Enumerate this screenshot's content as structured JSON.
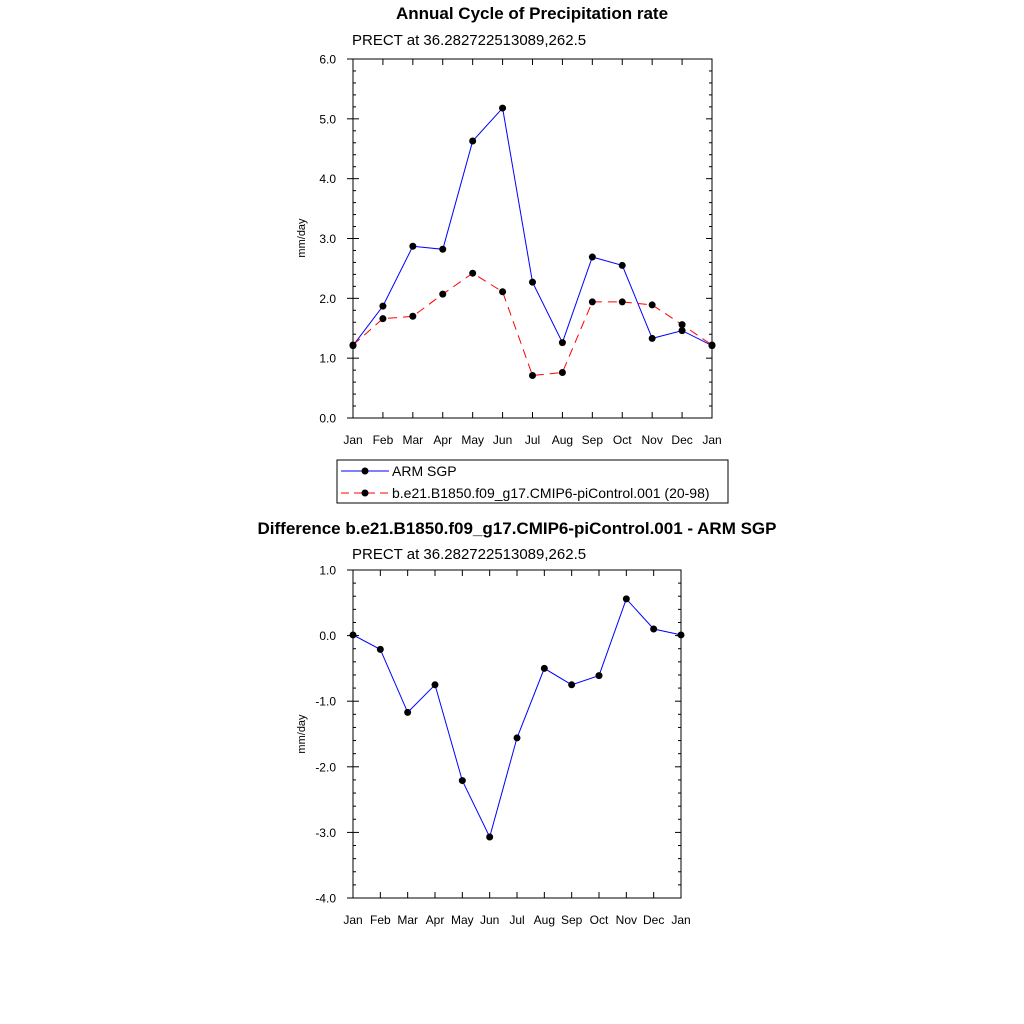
{
  "chart_data": [
    {
      "type": "line",
      "title": "Annual Cycle of Precipitation rate",
      "subtitle": "PRECT at 36.282722513089,262.5",
      "xlabel": "",
      "ylabel": "mm/day",
      "categories": [
        "Jan",
        "Feb",
        "Mar",
        "Apr",
        "May",
        "Jun",
        "Jul",
        "Aug",
        "Sep",
        "Oct",
        "Nov",
        "Dec",
        "Jan"
      ],
      "ylim": [
        0.0,
        6.0
      ],
      "yticks": [
        "0.0",
        "1.0",
        "2.0",
        "3.0",
        "4.0",
        "5.0",
        "6.0"
      ],
      "series": [
        {
          "name": "ARM SGP",
          "color": "#0000ff",
          "dash": "solid",
          "values": [
            1.21,
            1.87,
            2.87,
            2.82,
            4.63,
            5.18,
            2.27,
            1.26,
            2.69,
            2.55,
            1.33,
            1.46,
            1.21
          ]
        },
        {
          "name": "b.e21.B1850.f09_g17.CMIP6-piControl.001 (20-98)",
          "color": "#ff0000",
          "dash": "dashed",
          "values": [
            1.22,
            1.66,
            1.7,
            2.07,
            2.42,
            2.11,
            0.71,
            0.76,
            1.94,
            1.94,
            1.89,
            1.56,
            1.22
          ]
        }
      ],
      "legend": "bottom"
    },
    {
      "type": "line",
      "title": "Difference b.e21.B1850.f09_g17.CMIP6-piControl.001 - ARM SGP",
      "subtitle": "PRECT at 36.282722513089,262.5",
      "xlabel": "",
      "ylabel": "mm/day",
      "categories": [
        "Jan",
        "Feb",
        "Mar",
        "Apr",
        "May",
        "Jun",
        "Jul",
        "Aug",
        "Sep",
        "Oct",
        "Nov",
        "Dec",
        "Jan"
      ],
      "ylim": [
        -4.0,
        1.0
      ],
      "yticks": [
        "-4.0",
        "-3.0",
        "-2.0",
        "-1.0",
        "0.0",
        "1.0"
      ],
      "series": [
        {
          "name": "Difference",
          "color": "#0000ff",
          "dash": "solid",
          "values": [
            0.01,
            -0.21,
            -1.17,
            -0.75,
            -2.21,
            -3.07,
            -1.56,
            -0.5,
            -0.75,
            -0.61,
            0.56,
            0.1,
            0.01
          ]
        }
      ]
    }
  ]
}
